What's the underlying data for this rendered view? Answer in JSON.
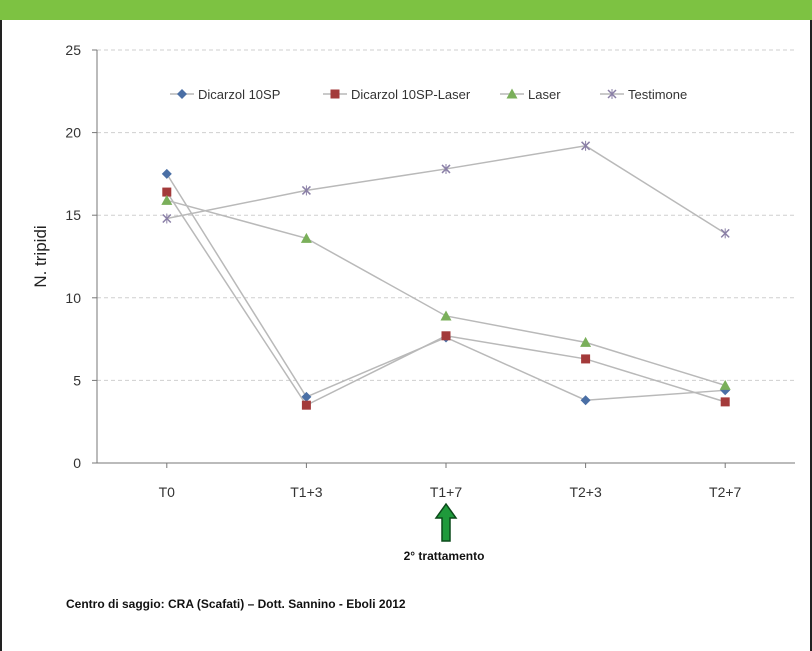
{
  "chart_data": {
    "type": "line",
    "categories": [
      "T0",
      "T1+3",
      "T1+7",
      "T2+3",
      "T2+7"
    ],
    "ylabel": "N. tripidi",
    "xlabel": "",
    "ylim": [
      0,
      25
    ],
    "yticks": [
      0,
      5,
      10,
      15,
      20,
      25
    ],
    "grid": true,
    "legend": "top",
    "series": [
      {
        "name": "Dicarzol 10SP",
        "values": [
          17.5,
          4.0,
          7.6,
          3.8,
          4.4
        ],
        "color": "#4a6fa5",
        "marker": "diamond"
      },
      {
        "name": "Dicarzol 10SP-Laser",
        "values": [
          16.4,
          3.5,
          7.7,
          6.3,
          3.7
        ],
        "color": "#a33a3a",
        "marker": "square"
      },
      {
        "name": "Laser",
        "values": [
          15.9,
          13.6,
          8.9,
          7.3,
          4.7
        ],
        "color": "#7aaf5a",
        "marker": "triangle"
      },
      {
        "name": "Testimone",
        "values": [
          14.8,
          16.5,
          17.8,
          19.2,
          13.9
        ],
        "color": "#8a7fa6",
        "marker": "x"
      }
    ],
    "annotation": {
      "text": "2° trattamento",
      "category": "T1+7",
      "arrow_color": "#1f9a3b"
    }
  },
  "footer": {
    "note": "Centro di saggio: CRA (Scafati) – Dott. Sannino - Eboli 2012"
  },
  "colors": {
    "topbar": "#7dc242",
    "grid": "#cfcfcf",
    "line": "#b9b9b9"
  }
}
